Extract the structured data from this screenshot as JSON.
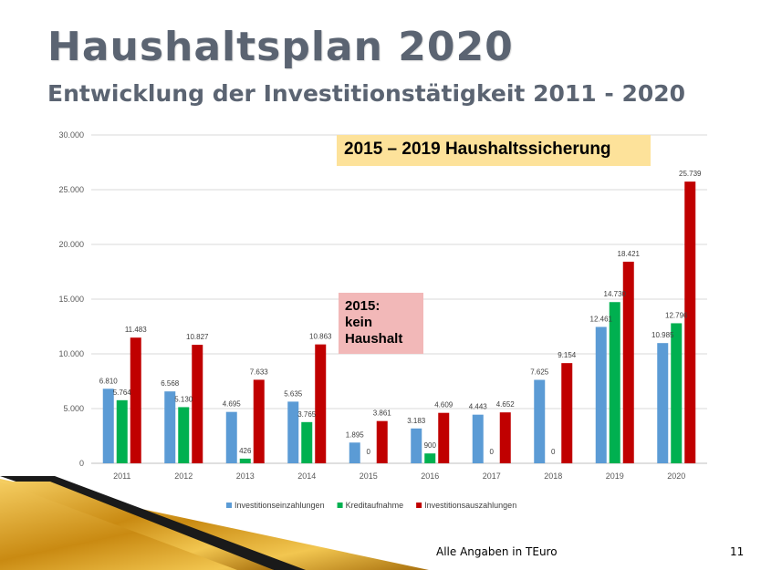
{
  "slide": {
    "title": "Haushaltsplan 2020",
    "subtitle": "Entwicklung der Investitionstätigkeit 2011 - 2020",
    "footer_note": "Alle Angaben in TEuro",
    "page_number": "11"
  },
  "annotations": {
    "box1": "2015 – 2019 Haushaltssicherung",
    "box2_lines": [
      "2015:",
      "kein",
      "Haushalt"
    ]
  },
  "colors": {
    "series1": "#5b9bd5",
    "series2": "#00b050",
    "series3": "#c00000",
    "note1_bg": "#fde29a",
    "note2_bg": "#f2b8b8",
    "title": "#5b6472"
  },
  "chart_data": {
    "type": "bar",
    "categories": [
      "2011",
      "2012",
      "2013",
      "2014",
      "2015",
      "2016",
      "2017",
      "2018",
      "2019",
      "2020"
    ],
    "series": [
      {
        "name": "Investitionseinzahlungen",
        "values": [
          6810,
          6568,
          4695,
          5635,
          1895,
          3183,
          4443,
          7625,
          12461,
          10985
        ],
        "labels": [
          "6.810",
          "6.568",
          "4.695",
          "5.635",
          "1.895",
          "3.183",
          "4.443",
          "7.625",
          "12.461",
          "10.985"
        ]
      },
      {
        "name": "Kreditaufnahme",
        "values": [
          5764,
          5130,
          426,
          3765,
          0,
          900,
          0,
          0,
          14730,
          12796
        ],
        "labels": [
          "5.764",
          "5.130",
          "426",
          "3.765",
          "0",
          "900",
          "0",
          "0",
          "14.730",
          "12.796"
        ]
      },
      {
        "name": "Investitionsauszahlungen",
        "values": [
          11483,
          10827,
          7633,
          10863,
          3861,
          4609,
          4652,
          9154,
          18421,
          25739
        ],
        "labels": [
          "11.483",
          "10.827",
          "7.633",
          "10.863",
          "3.861",
          "4.609",
          "4.652",
          "9.154",
          "18.421",
          "25.739"
        ]
      }
    ],
    "ylim": [
      0,
      30000
    ],
    "yticks": [
      0,
      5000,
      10000,
      15000,
      20000,
      25000,
      30000
    ],
    "ytick_labels": [
      "0",
      "5.000",
      "10.000",
      "15.000",
      "20.000",
      "25.000",
      "30.000"
    ],
    "grid": true,
    "legend": "bottom",
    "xlabel": "",
    "ylabel": ""
  }
}
